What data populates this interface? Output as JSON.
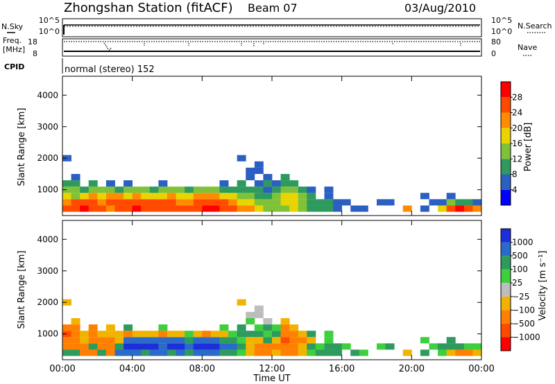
{
  "header": {
    "title": "Zhongshan Station (fitACF)",
    "beam": "Beam 07",
    "date": "03/Aug/2010"
  },
  "param_panels": {
    "nsky_label": "N.Sky",
    "nsky_ticks": [
      "10^5",
      "10^0"
    ],
    "nsearch_label": "N.Search",
    "nsearch_ticks": [
      "10^5",
      "10^0"
    ],
    "freq_label": "Freq.",
    "freq_unit": "[MHz]",
    "freq_ticks": [
      "18",
      "8"
    ],
    "nave_label": "Nave",
    "nave_ticks": [
      "80",
      "0"
    ],
    "cpid_label": "CPID",
    "cpid_text": "normal (stereo) 152"
  },
  "colors": {
    "power_scale": [
      "#0000ff",
      "#2b5fc2",
      "#2e9a5e",
      "#7fc23a",
      "#e8d400",
      "#ff8c00",
      "#ff4a00",
      "#ff0000"
    ],
    "velocity_scale": [
      "#1d2fd8",
      "#2a6bc9",
      "#2e9a5e",
      "#3dcf3d",
      "#bdbdbd",
      "#f0b400",
      "#ff8000",
      "#ff4a00",
      "#ff0000"
    ]
  },
  "chart_data": [
    {
      "type": "heatmap",
      "name": "power",
      "ylabel": "Slant Range [km]",
      "yticks": [
        "4000",
        "3000",
        "2000",
        "1000"
      ],
      "ytick_values": [
        4000,
        3000,
        2000,
        1000
      ],
      "ylim": [
        180,
        4600
      ],
      "xlim_hours": [
        0,
        24
      ],
      "colorbar_label": "Power [dB]",
      "colorbar_ticks": [
        "28",
        "24",
        "20",
        "16",
        "12",
        "8",
        "4"
      ],
      "colorbar_range": [
        0,
        32
      ],
      "x_hours": [
        0.25,
        0.75,
        1.25,
        1.75,
        2.25,
        2.75,
        3.25,
        3.75,
        4.25,
        4.75,
        5.25,
        5.75,
        6.25,
        6.75,
        7.25,
        7.75,
        8.25,
        8.75,
        9.25,
        9.75,
        10.25,
        10.75,
        11.25,
        11.75,
        12.25,
        12.75,
        13.25,
        13.75,
        14.25,
        14.75,
        15.25,
        15.75,
        16.25,
        16.75,
        17.25,
        17.75,
        18.25,
        18.75,
        19.25,
        19.75,
        20.25,
        20.75,
        21.25,
        21.75,
        22.25,
        22.75,
        23.25,
        23.75
      ],
      "range_km": [
        400,
        600,
        800,
        1000,
        1200,
        1400,
        1600,
        1800,
        2000
      ],
      "values_db": [
        [
          24,
          26,
          28,
          26,
          24,
          22,
          24,
          26,
          28,
          26,
          24,
          24,
          26,
          26,
          24,
          26,
          28,
          28,
          26,
          24,
          22,
          20,
          16,
          14,
          12,
          14,
          16,
          12,
          8,
          10,
          8,
          6,
          null,
          6,
          4,
          null,
          null,
          null,
          null,
          20,
          null,
          6,
          null,
          16,
          26,
          28,
          24,
          20
        ],
        [
          22,
          24,
          26,
          24,
          22,
          24,
          26,
          24,
          24,
          26,
          24,
          24,
          24,
          22,
          22,
          24,
          26,
          24,
          24,
          22,
          18,
          16,
          14,
          12,
          14,
          16,
          18,
          14,
          10,
          8,
          10,
          6,
          4,
          null,
          null,
          null,
          4,
          6,
          null,
          null,
          null,
          null,
          4,
          6,
          12,
          10,
          8,
          6
        ],
        [
          18,
          14,
          16,
          20,
          18,
          22,
          20,
          18,
          20,
          18,
          16,
          18,
          20,
          18,
          18,
          20,
          22,
          20,
          18,
          16,
          14,
          12,
          10,
          8,
          12,
          18,
          16,
          12,
          8,
          null,
          6,
          null,
          null,
          null,
          null,
          null,
          null,
          null,
          null,
          null,
          null,
          4,
          null,
          null,
          6,
          null,
          null,
          null
        ],
        [
          14,
          12,
          10,
          12,
          14,
          12,
          10,
          12,
          14,
          12,
          10,
          12,
          14,
          12,
          10,
          12,
          14,
          12,
          10,
          8,
          8,
          10,
          8,
          6,
          8,
          14,
          12,
          10,
          6,
          null,
          4,
          null,
          null,
          null,
          null,
          null,
          null,
          null,
          null,
          null,
          null,
          null,
          null,
          null,
          null,
          null,
          null,
          null
        ],
        [
          10,
          8,
          null,
          8,
          null,
          6,
          null,
          4,
          null,
          null,
          null,
          6,
          null,
          null,
          null,
          null,
          null,
          null,
          6,
          null,
          8,
          null,
          6,
          8,
          6,
          10,
          8,
          null,
          null,
          null,
          null,
          null,
          null,
          null,
          null,
          null,
          null,
          null,
          null,
          null,
          null,
          null,
          null,
          null,
          null,
          null,
          null,
          null
        ],
        [
          null,
          6,
          null,
          null,
          null,
          null,
          null,
          null,
          null,
          null,
          null,
          null,
          null,
          null,
          null,
          null,
          null,
          null,
          null,
          null,
          null,
          6,
          null,
          4,
          null,
          8,
          null,
          null,
          null,
          null,
          null,
          null,
          null,
          null,
          null,
          null,
          null,
          null,
          null,
          null,
          null,
          null,
          null,
          null,
          null,
          null,
          null,
          null
        ],
        [
          null,
          null,
          null,
          null,
          null,
          null,
          null,
          null,
          null,
          null,
          null,
          null,
          null,
          null,
          null,
          null,
          null,
          null,
          null,
          null,
          null,
          4,
          6,
          null,
          null,
          null,
          null,
          null,
          null,
          null,
          null,
          null,
          null,
          null,
          null,
          null,
          null,
          null,
          null,
          null,
          null,
          null,
          null,
          null,
          null,
          null,
          null,
          null
        ],
        [
          null,
          null,
          null,
          null,
          null,
          null,
          null,
          null,
          null,
          null,
          null,
          null,
          null,
          null,
          null,
          null,
          null,
          null,
          null,
          null,
          null,
          null,
          4,
          null,
          null,
          null,
          null,
          null,
          null,
          null,
          null,
          null,
          null,
          null,
          null,
          null,
          null,
          null,
          null,
          null,
          null,
          null,
          null,
          null,
          null,
          null,
          null,
          null
        ],
        [
          4,
          null,
          null,
          null,
          null,
          null,
          null,
          null,
          null,
          null,
          null,
          null,
          null,
          null,
          null,
          null,
          null,
          null,
          null,
          null,
          6,
          null,
          null,
          null,
          null,
          null,
          null,
          null,
          null,
          null,
          null,
          null,
          null,
          null,
          null,
          null,
          null,
          null,
          null,
          null,
          null,
          null,
          null,
          null,
          null,
          null,
          null,
          null
        ]
      ]
    },
    {
      "type": "heatmap",
      "name": "velocity",
      "ylabel": "Slant Range [km]",
      "yticks": [
        "4000",
        "3000",
        "2000",
        "1000"
      ],
      "ytick_values": [
        4000,
        3000,
        2000,
        1000
      ],
      "ylim": [
        180,
        4600
      ],
      "xlim_hours": [
        0,
        24
      ],
      "colorbar_label": "Velocity [m s⁻¹]",
      "colorbar_ticks": [
        "1000",
        "500",
        "100",
        "25",
        "−25",
        "−100",
        "−500",
        "−1000"
      ],
      "colorbar_levels": [
        1000,
        500,
        100,
        25,
        -25,
        -100,
        -500,
        -1000
      ],
      "xlabel": "Time UT",
      "xticks": [
        "00:00",
        "04:00",
        "08:00",
        "12:00",
        "16:00",
        "20:00",
        "00:00"
      ],
      "xtick_hours": [
        0,
        4,
        8,
        12,
        16,
        20,
        24
      ],
      "x_hours": [
        0.25,
        0.75,
        1.25,
        1.75,
        2.25,
        2.75,
        3.25,
        3.75,
        4.25,
        4.75,
        5.25,
        5.75,
        6.25,
        6.75,
        7.25,
        7.75,
        8.25,
        8.75,
        9.25,
        9.75,
        10.25,
        10.75,
        11.25,
        11.75,
        12.25,
        12.75,
        13.25,
        13.75,
        14.25,
        14.75,
        15.25,
        15.75,
        16.25,
        16.75,
        17.25,
        17.75,
        18.25,
        18.75,
        19.25,
        19.75,
        20.25,
        20.75,
        21.25,
        21.75,
        22.25,
        22.75,
        23.25,
        23.75
      ],
      "range_km": [
        400,
        600,
        800,
        1000,
        1200,
        1400,
        1600,
        1800,
        2000
      ],
      "values_ms": [
        [
          100,
          50,
          -200,
          -300,
          100,
          -200,
          200,
          300,
          500,
          100,
          300,
          200,
          50,
          300,
          100,
          200,
          300,
          200,
          100,
          50,
          20,
          -50,
          -150,
          -200,
          -100,
          -200,
          -300,
          -100,
          20,
          50,
          100,
          50,
          null,
          50,
          20,
          null,
          null,
          null,
          null,
          -50,
          null,
          50,
          null,
          20,
          -100,
          -200,
          -150,
          -50
        ],
        [
          -200,
          -300,
          -200,
          100,
          -150,
          -200,
          100,
          600,
          800,
          1000,
          700,
          500,
          800,
          600,
          400,
          700,
          900,
          600,
          500,
          200,
          100,
          -100,
          -200,
          -150,
          -200,
          -300,
          -200,
          -100,
          50,
          20,
          50,
          50,
          20,
          null,
          null,
          null,
          20,
          50,
          null,
          null,
          null,
          null,
          20,
          50,
          100,
          50,
          20,
          20
        ],
        [
          -300,
          -200,
          -100,
          -200,
          -300,
          -200,
          -100,
          300,
          500,
          400,
          300,
          200,
          300,
          200,
          100,
          300,
          400,
          200,
          100,
          50,
          20,
          -50,
          -100,
          50,
          -100,
          -400,
          -300,
          -200,
          -50,
          null,
          20,
          null,
          null,
          null,
          null,
          null,
          null,
          null,
          null,
          null,
          null,
          20,
          null,
          null,
          50,
          null,
          null,
          null
        ],
        [
          -400,
          -200,
          -100,
          -200,
          -100,
          -50,
          -100,
          -200,
          -100,
          -50,
          -100,
          -200,
          -100,
          -50,
          20,
          -100,
          -200,
          -100,
          -50,
          20,
          50,
          100,
          50,
          20,
          50,
          -300,
          -200,
          -100,
          50,
          null,
          20,
          null,
          null,
          null,
          null,
          null,
          null,
          null,
          null,
          null,
          null,
          null,
          null,
          null,
          null,
          null,
          null,
          null
        ],
        [
          -300,
          -200,
          null,
          -150,
          null,
          -100,
          null,
          50,
          null,
          null,
          null,
          20,
          null,
          null,
          null,
          null,
          null,
          null,
          20,
          null,
          50,
          null,
          20,
          50,
          20,
          -200,
          -100,
          null,
          null,
          null,
          null,
          null,
          null,
          null,
          null,
          null,
          null,
          null,
          null,
          null,
          null,
          null,
          null,
          null,
          null,
          null,
          null,
          null
        ],
        [
          null,
          -100,
          null,
          null,
          null,
          null,
          null,
          null,
          null,
          null,
          null,
          null,
          null,
          null,
          null,
          null,
          null,
          null,
          null,
          null,
          null,
          20,
          null,
          0,
          null,
          -100,
          null,
          null,
          null,
          null,
          null,
          null,
          null,
          null,
          null,
          null,
          null,
          null,
          null,
          null,
          null,
          null,
          null,
          null,
          null,
          null,
          null,
          null
        ],
        [
          null,
          null,
          null,
          null,
          null,
          null,
          null,
          null,
          null,
          null,
          null,
          null,
          null,
          null,
          null,
          null,
          null,
          null,
          null,
          null,
          null,
          0,
          10,
          null,
          null,
          null,
          null,
          null,
          null,
          null,
          null,
          null,
          null,
          null,
          null,
          null,
          null,
          null,
          null,
          null,
          null,
          null,
          null,
          null,
          null,
          null,
          null,
          null
        ],
        [
          null,
          null,
          null,
          null,
          null,
          null,
          null,
          null,
          null,
          null,
          null,
          null,
          null,
          null,
          null,
          null,
          null,
          null,
          null,
          null,
          null,
          null,
          0,
          null,
          null,
          null,
          null,
          null,
          null,
          null,
          null,
          null,
          null,
          null,
          null,
          null,
          null,
          null,
          null,
          null,
          null,
          null,
          null,
          null,
          null,
          null,
          null,
          null
        ],
        [
          -100,
          null,
          null,
          null,
          null,
          null,
          null,
          null,
          null,
          null,
          null,
          null,
          null,
          null,
          null,
          null,
          null,
          null,
          null,
          null,
          -100,
          null,
          null,
          null,
          null,
          null,
          null,
          null,
          null,
          null,
          null,
          null,
          null,
          null,
          null,
          null,
          null,
          null,
          null,
          null,
          null,
          null,
          null,
          null,
          null,
          null,
          null,
          null
        ]
      ]
    }
  ]
}
